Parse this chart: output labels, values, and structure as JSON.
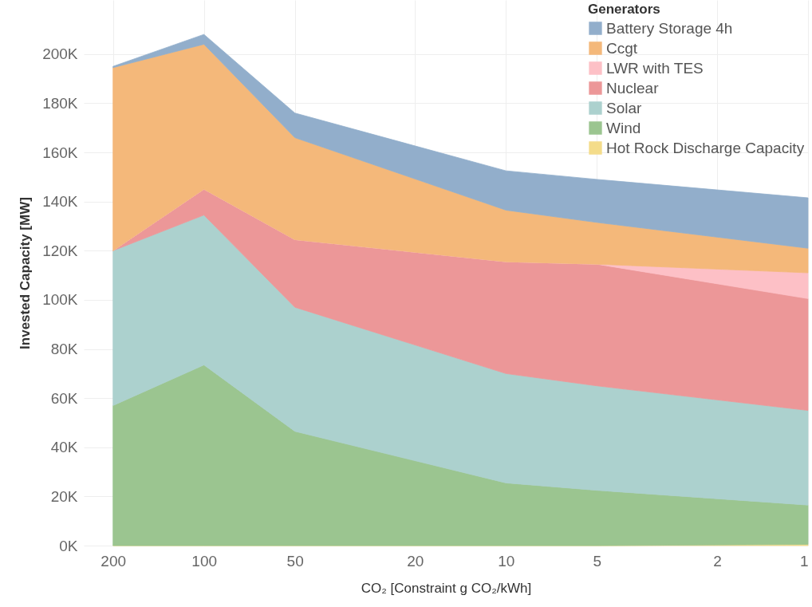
{
  "chart_data": {
    "type": "area",
    "stacked": true,
    "xlabel": "CO₂ [Constraint g CO₂/kWh]",
    "ylabel": "Invested Capacity [MW]",
    "legend_title": "Generators",
    "legend": "top right",
    "grid": true,
    "log": "x",
    "x": [
      200,
      100,
      50,
      10,
      5,
      1
    ],
    "xlim": [
      250,
      1
    ],
    "xticks": [
      200,
      100,
      50,
      20,
      10,
      5,
      2,
      1
    ],
    "ylim": [
      0,
      222000
    ],
    "yticks": [
      {
        "value": 0,
        "label": "0K"
      },
      {
        "value": 20000,
        "label": "20K"
      },
      {
        "value": 40000,
        "label": "40K"
      },
      {
        "value": 60000,
        "label": "60K"
      },
      {
        "value": 80000,
        "label": "80K"
      },
      {
        "value": 100000,
        "label": "100K"
      },
      {
        "value": 120000,
        "label": "120K"
      },
      {
        "value": 140000,
        "label": "140K"
      },
      {
        "value": 160000,
        "label": "160K"
      },
      {
        "value": 180000,
        "label": "180K"
      },
      {
        "value": 200000,
        "label": "200K"
      }
    ],
    "series": [
      {
        "name": "Hot Rock Discharge Capacity",
        "color": "#f4dc8a",
        "values": [
          0,
          0,
          0,
          0,
          0,
          500
        ]
      },
      {
        "name": "Wind",
        "color": "#9bc590",
        "values": [
          57000,
          73500,
          46500,
          25500,
          22500,
          16000
        ]
      },
      {
        "name": "Solar",
        "color": "#acd1ce",
        "values": [
          63000,
          61000,
          50500,
          44500,
          42500,
          38500
        ]
      },
      {
        "name": "Nuclear",
        "color": "#ec9798",
        "values": [
          0,
          10500,
          27500,
          45500,
          49500,
          45500
        ]
      },
      {
        "name": "LWR with TES",
        "color": "#fdc0c6",
        "values": [
          0,
          0,
          0,
          0,
          0,
          10500
        ]
      },
      {
        "name": "Ccgt",
        "color": "#f4b87a",
        "values": [
          74500,
          59000,
          41500,
          21000,
          17000,
          10000
        ]
      },
      {
        "name": "Battery Storage 4h",
        "color": "#92aecb",
        "values": [
          500,
          4000,
          10000,
          16000,
          17500,
          20500
        ]
      }
    ]
  }
}
